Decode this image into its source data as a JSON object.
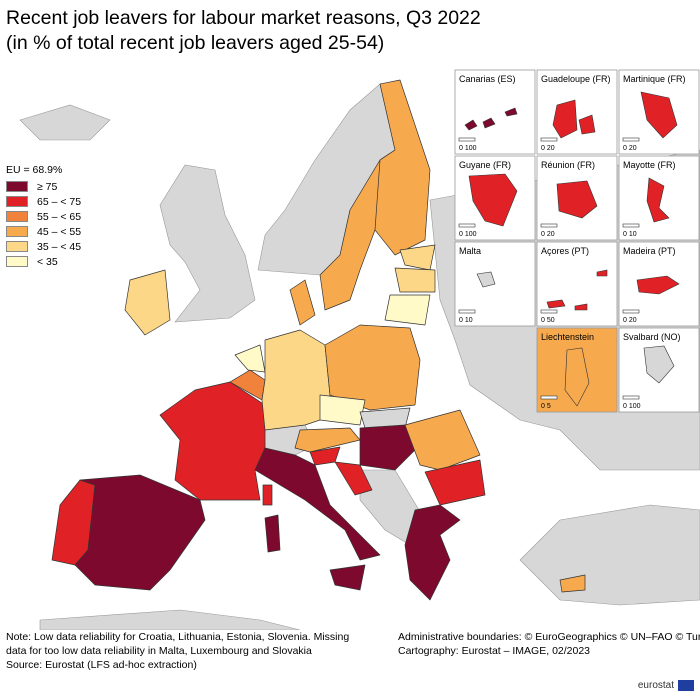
{
  "title": {
    "line1": "Recent job leavers for labour market reasons, Q3 2022",
    "line2": "(in % of total recent job leavers aged 25-54)"
  },
  "legend": {
    "title": "EU = 68.9%",
    "items": [
      {
        "label": "≥ 75",
        "color": "#7d0a2e"
      },
      {
        "label": "65 – < 75",
        "color": "#e02226"
      },
      {
        "label": "55 – < 65",
        "color": "#f0823c"
      },
      {
        "label": "45 – < 55",
        "color": "#f7a94e"
      },
      {
        "label": "35 – < 45",
        "color": "#fcd787"
      },
      {
        "label": "< 35",
        "color": "#fffac8"
      }
    ]
  },
  "insets": [
    {
      "label": "Canarias (ES)",
      "scale": "0  100",
      "color": "#7d0a2e"
    },
    {
      "label": "Guadeloupe (FR)",
      "scale": "0  20",
      "color": "#e02226"
    },
    {
      "label": "Martinique (FR)",
      "scale": "0  20",
      "color": "#e02226"
    },
    {
      "label": "Guyane (FR)",
      "scale": "0  100",
      "color": "#e02226"
    },
    {
      "label": "Réunion (FR)",
      "scale": "0  20",
      "color": "#e02226"
    },
    {
      "label": "Mayotte (FR)",
      "scale": "0  10",
      "color": "#e02226"
    },
    {
      "label": "Malta",
      "scale": "0  10",
      "color": "#d7d7d7"
    },
    {
      "label": "Açores (PT)",
      "scale": "0  50",
      "color": "#e02226"
    },
    {
      "label": "Madeira (PT)",
      "scale": "0  20",
      "color": "#e02226"
    },
    {
      "label": "Liechtenstein",
      "scale": "0  5",
      "color": "#f7a94e"
    },
    {
      "label": "Svalbard (NO)",
      "scale": "0  100",
      "color": "#d7d7d7"
    }
  ],
  "notes": {
    "left": [
      "Note: Low data reliability for Croatia, Lithuania, Estonia, Slovenia. Missing",
      "data for too low data reliability in Malta, Luxembourg and Slovakia",
      "Source: Eurostat (LFS ad-hoc extraction)"
    ],
    "right": [
      "Administrative boundaries: © EuroGeographics © UN–FAO © Turkstat",
      "Cartography: Eurostat – IMAGE, 02/2023"
    ]
  },
  "logo": "eurostat",
  "colors": {
    "sea": "#ffffff",
    "non_eu": "#d7d7d7",
    "border": "#333333"
  }
}
